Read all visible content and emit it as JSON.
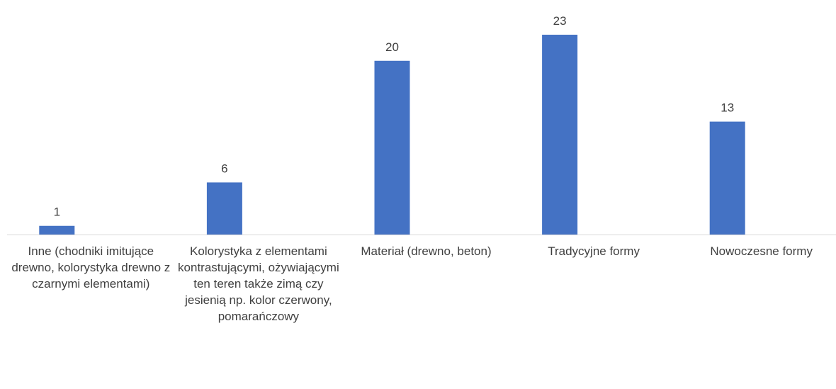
{
  "chart_data": {
    "type": "bar",
    "categories": [
      "Inne (chodniki imitujące drewno, kolorystyka drewno z czarnymi elementami)",
      "Kolorystyka z elementami kontrastującymi, ożywiającymi ten teren także zimą czy jesienią np. kolor czerwony, pomarańczowy",
      "Materiał (drewno, beton)",
      "Tradycyjne formy",
      "Nowoczesne formy"
    ],
    "values": [
      1,
      6,
      20,
      23,
      13
    ],
    "color": "#4472c4",
    "ylim": [
      0,
      25
    ]
  }
}
